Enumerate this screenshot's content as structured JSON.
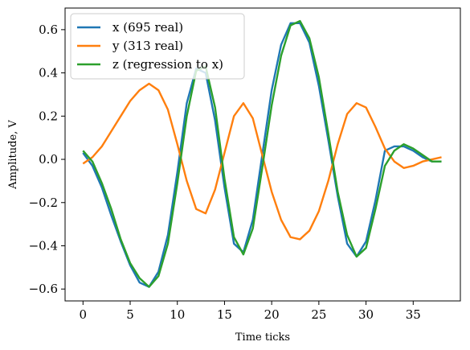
{
  "chart_data": {
    "type": "line",
    "title": "",
    "xlabel": "Time ticks",
    "ylabel": "Amplitude, V",
    "xlim": [
      -1.9,
      40.0
    ],
    "ylim": [
      -0.655,
      0.7
    ],
    "xticks": [
      0,
      5,
      10,
      15,
      20,
      25,
      30,
      35
    ],
    "yticks": [
      -0.6,
      -0.4,
      -0.2,
      0.0,
      0.2,
      0.4,
      0.6
    ],
    "xtick_labels": [
      "0",
      "5",
      "10",
      "15",
      "20",
      "25",
      "30",
      "35"
    ],
    "ytick_labels": [
      "−0.6",
      "−0.4",
      "−0.2",
      "0.0",
      "0.2",
      "0.4",
      "0.6"
    ],
    "grid": false,
    "legend": "top-left",
    "series": [
      {
        "name": "x (695 real)",
        "color": "#1f77b4",
        "x": [
          0,
          1,
          2,
          3,
          4,
          5,
          6,
          7,
          8,
          9,
          10,
          11,
          12,
          13,
          14,
          15,
          16,
          17,
          18,
          19,
          20,
          21,
          22,
          23,
          24,
          25,
          26,
          27,
          28,
          29,
          30,
          31,
          32,
          33,
          34,
          35,
          36,
          37,
          38
        ],
        "values": [
          0.03,
          -0.03,
          -0.13,
          -0.26,
          -0.38,
          -0.49,
          -0.57,
          -0.59,
          -0.52,
          -0.35,
          -0.06,
          0.26,
          0.42,
          0.4,
          0.18,
          -0.13,
          -0.39,
          -0.43,
          -0.28,
          0.02,
          0.32,
          0.53,
          0.63,
          0.63,
          0.54,
          0.34,
          0.09,
          -0.17,
          -0.39,
          -0.45,
          -0.38,
          -0.19,
          0.04,
          0.06,
          0.06,
          0.04,
          0.01,
          -0.01,
          -0.01
        ]
      },
      {
        "name": "y (313 real)",
        "color": "#ff7f0e",
        "x": [
          0,
          1,
          2,
          3,
          4,
          5,
          6,
          7,
          8,
          9,
          10,
          11,
          12,
          13,
          14,
          15,
          16,
          17,
          18,
          19,
          20,
          21,
          22,
          23,
          24,
          25,
          26,
          27,
          28,
          29,
          30,
          31,
          32,
          33,
          34,
          35,
          36,
          37,
          38
        ],
        "values": [
          -0.02,
          0.01,
          0.06,
          0.13,
          0.2,
          0.27,
          0.32,
          0.35,
          0.32,
          0.23,
          0.07,
          -0.1,
          -0.23,
          -0.25,
          -0.14,
          0.03,
          0.2,
          0.26,
          0.19,
          0.02,
          -0.15,
          -0.28,
          -0.36,
          -0.37,
          -0.33,
          -0.24,
          -0.1,
          0.07,
          0.21,
          0.26,
          0.24,
          0.15,
          0.05,
          -0.01,
          -0.04,
          -0.03,
          -0.01,
          0.0,
          0.01
        ]
      },
      {
        "name": "z (regression to x)",
        "color": "#2ca02c",
        "x": [
          0,
          1,
          2,
          3,
          4,
          5,
          6,
          7,
          8,
          9,
          10,
          11,
          12,
          13,
          14,
          15,
          16,
          17,
          18,
          19,
          20,
          21,
          22,
          23,
          24,
          25,
          26,
          27,
          28,
          29,
          30,
          31,
          32,
          33,
          34,
          35,
          36,
          37,
          38
        ],
        "values": [
          0.04,
          -0.01,
          -0.11,
          -0.23,
          -0.37,
          -0.48,
          -0.55,
          -0.59,
          -0.54,
          -0.39,
          -0.11,
          0.2,
          0.41,
          0.43,
          0.24,
          -0.09,
          -0.36,
          -0.44,
          -0.32,
          -0.04,
          0.25,
          0.48,
          0.62,
          0.64,
          0.56,
          0.38,
          0.12,
          -0.15,
          -0.35,
          -0.45,
          -0.41,
          -0.23,
          -0.03,
          0.04,
          0.07,
          0.05,
          0.02,
          -0.01,
          -0.01
        ]
      }
    ]
  }
}
